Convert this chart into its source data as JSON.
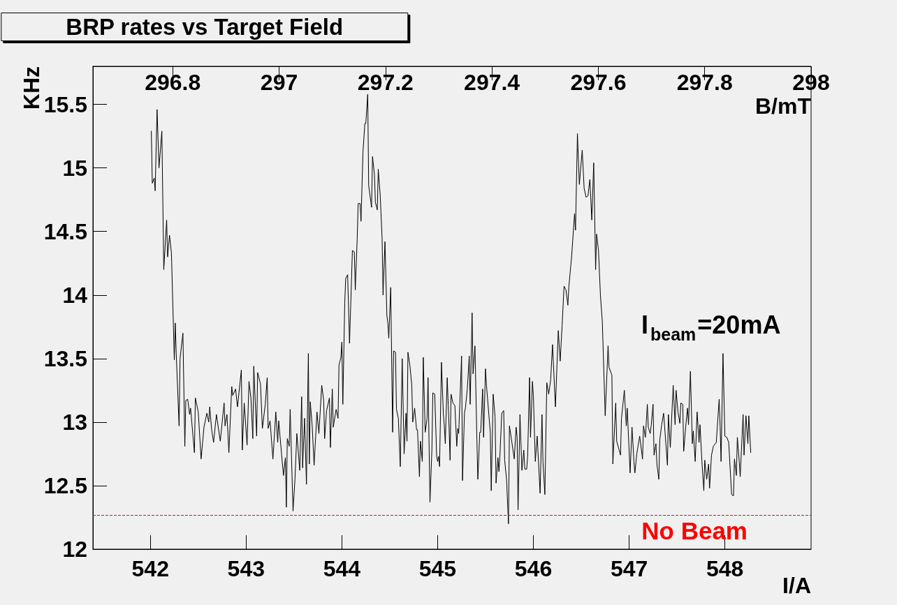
{
  "chart_data": {
    "type": "line",
    "title": "BRP rates vs Target Field",
    "xlabel": "I/A",
    "ylabel": "KHz",
    "x2label": "B/mT",
    "annotations": [
      "I$_{beam}$=20mA"
    ],
    "x": [
      542.01,
      542.02,
      542.04,
      542.05,
      542.07,
      542.09,
      542.12,
      542.14,
      542.17,
      542.18,
      542.2,
      542.22,
      542.25,
      542.26,
      542.27,
      542.3,
      542.31,
      542.34,
      542.36,
      542.37,
      542.39,
      542.41,
      542.42,
      542.46,
      542.47,
      542.5,
      542.53,
      542.56,
      542.59,
      542.61,
      542.62,
      542.64,
      542.66,
      542.69,
      542.73,
      542.77,
      542.78,
      542.8,
      542.82,
      542.85,
      542.86,
      542.89,
      542.91,
      542.95,
      542.96,
      542.98,
      543.01,
      543.03,
      543.05,
      543.07,
      543.08,
      543.11,
      543.12,
      543.15,
      543.17,
      543.2,
      543.22,
      543.23,
      543.25,
      543.28,
      543.31,
      543.33,
      543.34,
      543.37,
      543.39,
      543.41,
      543.42,
      543.43,
      543.45,
      543.46,
      543.49,
      543.51,
      543.53,
      543.56,
      543.58,
      543.59,
      543.61,
      543.63,
      543.65,
      543.66,
      543.67,
      543.69,
      543.71,
      543.74,
      543.76,
      543.79,
      543.81,
      543.82,
      543.84,
      543.87,
      543.88,
      543.9,
      543.91,
      543.94,
      543.96,
      543.97,
      543.99,
      544,
      544.01,
      544.03,
      544.04,
      544.06,
      544.08,
      544.11,
      544.13,
      544.14,
      544.16,
      544.17,
      544.19,
      544.2,
      544.22,
      544.24,
      544.25,
      544.27,
      544.28,
      544.31,
      544.32,
      544.34,
      544.35,
      544.37,
      544.38,
      544.4,
      544.42,
      544.43,
      544.45,
      544.47,
      544.48,
      544.49,
      544.51,
      544.53,
      544.54,
      544.56,
      544.57,
      544.59,
      544.61,
      544.63,
      544.65,
      544.67,
      544.68,
      544.69,
      544.71,
      544.73,
      544.74,
      544.76,
      544.78,
      544.79,
      544.81,
      544.82,
      544.84,
      544.85,
      544.87,
      544.89,
      544.9,
      544.92,
      544.94,
      544.95,
      544.97,
      544.99,
      545,
      545.01,
      545.02,
      545.04,
      545.06,
      545.07,
      545.08,
      545.1,
      545.12,
      545.13,
      545.14,
      545.16,
      545.18,
      545.2,
      545.21,
      545.22,
      545.25,
      545.26,
      545.28,
      545.29,
      545.31,
      545.33,
      545.34,
      545.36,
      545.37,
      545.39,
      545.41,
      545.42,
      545.44,
      545.45,
      545.47,
      545.48,
      545.5,
      545.51,
      545.55,
      545.56,
      545.58,
      545.6,
      545.61,
      545.63,
      545.64,
      545.65,
      545.67,
      545.69,
      545.7,
      545.72,
      545.74,
      545.75,
      545.77,
      545.8,
      545.82,
      545.83,
      545.84,
      545.86,
      545.88,
      545.9,
      545.91,
      545.93,
      545.94,
      545.96,
      545.97,
      545.99,
      546,
      546.02,
      546.04,
      546.07,
      546.09,
      546.1,
      546.12,
      546.14,
      546.16,
      546.18,
      546.2,
      546.23,
      546.26,
      546.28,
      546.3,
      546.32,
      546.34,
      546.36,
      546.37,
      546.4,
      546.43,
      546.44,
      546.46,
      546.48,
      546.51,
      546.53,
      546.55,
      546.57,
      546.59,
      546.61,
      546.63,
      546.65,
      546.66,
      546.68,
      546.7,
      546.72,
      546.73,
      546.75,
      546.78,
      546.79,
      546.82,
      546.83,
      546.86,
      546.87,
      546.91,
      546.92,
      546.95,
      546.97,
      546.98,
      547.01,
      547.03,
      547.05,
      547.06,
      547.08,
      547.11,
      547.14,
      547.15,
      547.17,
      547.19,
      547.2,
      547.22,
      547.23,
      547.25,
      547.26,
      547.28,
      547.29,
      547.31,
      547.32,
      547.34,
      547.36,
      547.37,
      547.4,
      547.41,
      547.43,
      547.46,
      547.48,
      547.49,
      547.51,
      547.53,
      547.54,
      547.56,
      547.57,
      547.59,
      547.61,
      547.62,
      547.64,
      547.66,
      547.67,
      547.69,
      547.71,
      547.73,
      547.74,
      547.76,
      547.78,
      547.79,
      547.81,
      547.83,
      547.84,
      547.86,
      547.88,
      547.91,
      547.94,
      547.95,
      547.96,
      547.98,
      548,
      548.02,
      548.04,
      548.07,
      548.09,
      548.1,
      548.12,
      548.13,
      548.15,
      548.16,
      548.19,
      548.2,
      548.22,
      548.24,
      548.25,
      548.27
    ],
    "series": [
      {
        "color": "#000000",
        "values": [
          15.29,
          14.88,
          14.92,
          14.82,
          15.46,
          15.0,
          15.29,
          14.2,
          14.59,
          14.3,
          14.47,
          14.33,
          13.49,
          13.78,
          13.54,
          12.97,
          13.5,
          13.7,
          12.81,
          13.17,
          13.18,
          13.06,
          13.11,
          12.76,
          13.19,
          13.08,
          12.71,
          12.96,
          13.07,
          13.0,
          13.12,
          12.94,
          12.84,
          13.06,
          12.85,
          13.15,
          12.97,
          13.06,
          12.76,
          13.28,
          13.21,
          13.26,
          13.12,
          13.41,
          12.78,
          13.15,
          12.82,
          13.32,
          13.19,
          12.87,
          13.44,
          12.89,
          13.39,
          13.3,
          12.95,
          13.14,
          13.35,
          12.95,
          13.01,
          12.71,
          13.08,
          12.84,
          13.01,
          12.75,
          12.58,
          12.72,
          12.33,
          12.87,
          12.81,
          13.1,
          12.3,
          12.55,
          12.91,
          12.62,
          13.2,
          12.64,
          13.03,
          12.51,
          13.54,
          12.67,
          13.16,
          12.97,
          12.66,
          13.08,
          12.91,
          13.29,
          13.17,
          12.87,
          13.09,
          13.19,
          12.8,
          13.26,
          12.96,
          13.1,
          13.03,
          13.45,
          13.51,
          13.63,
          13.14,
          13.94,
          14.13,
          14.16,
          13.62,
          14.35,
          14.34,
          14.04,
          14.44,
          14.72,
          14.72,
          14.58,
          15.12,
          15.35,
          15.35,
          15.58,
          14.86,
          14.69,
          15.09,
          14.95,
          14.73,
          14.67,
          14.99,
          14.79,
          14.45,
          14.0,
          14.42,
          13.84,
          13.78,
          13.66,
          14.06,
          12.92,
          13.56,
          13.55,
          13.1,
          13.03,
          12.65,
          13.5,
          12.75,
          13.07,
          12.85,
          13.55,
          13.45,
          13.29,
          13.0,
          13.11,
          12.94,
          12.94,
          12.57,
          12.85,
          12.69,
          13.51,
          12.92,
          13.03,
          13.35,
          12.37,
          12.78,
          13.23,
          13.22,
          12.73,
          12.69,
          12.73,
          12.65,
          13.47,
          13.06,
          12.97,
          12.83,
          13.35,
          12.95,
          12.7,
          13.22,
          13.15,
          13.13,
          12.81,
          12.95,
          12.91,
          13.52,
          12.54,
          13.07,
          13.11,
          13.26,
          13.52,
          13.14,
          13.86,
          13.38,
          13.6,
          12.86,
          12.55,
          12.92,
          12.92,
          13.26,
          12.88,
          13.42,
          13.29,
          12.92,
          12.46,
          13.22,
          13.04,
          12.52,
          12.72,
          12.61,
          12.73,
          13.07,
          13.09,
          12.7,
          12.55,
          12.2,
          12.97,
          12.87,
          12.71,
          12.96,
          12.88,
          12.31,
          13.06,
          12.62,
          12.78,
          12.63,
          12.63,
          12.73,
          13.35,
          12.88,
          13.32,
          13.21,
          12.69,
          12.89,
          12.44,
          13.06,
          12.69,
          12.43,
          13.31,
          13.22,
          13.33,
          13.61,
          13.12,
          13.72,
          13.48,
          13.76,
          14.07,
          14.04,
          13.92,
          14.06,
          14.31,
          14.64,
          14.51,
          15.27,
          14.87,
          15.14,
          14.84,
          14.77,
          14.78,
          14.91,
          14.59,
          15.04,
          14.2,
          14.48,
          14.35,
          14.0,
          13.79,
          13.54,
          13.05,
          13.6,
          13.43,
          13.37,
          12.67,
          13.15,
          12.85,
          12.74,
          13.03,
          13.25,
          12.97,
          13.11,
          12.6,
          12.96,
          12.69,
          12.6,
          12.75,
          12.89,
          12.71,
          12.97,
          12.88,
          13.14,
          12.96,
          12.91,
          12.97,
          13.14,
          12.74,
          12.83,
          12.67,
          12.55,
          12.86,
          12.98,
          13.07,
          12.97,
          12.66,
          13.06,
          12.8,
          13.29,
          12.98,
          13.25,
          13.08,
          12.99,
          13.15,
          13.14,
          12.77,
          12.96,
          13.11,
          12.98,
          13.4,
          12.83,
          12.93,
          12.69,
          13.08,
          12.84,
          12.98,
          12.69,
          12.46,
          12.7,
          12.55,
          12.67,
          12.48,
          12.74,
          12.81,
          12.84,
          13.18,
          12.97,
          12.69,
          13.54,
          12.89,
          12.88,
          12.84,
          12.43,
          12.42,
          12.71,
          12.58,
          12.88,
          12.69,
          12.57,
          13.06,
          12.74,
          13.05,
          12.83,
          13.05,
          12.76
        ]
      }
    ],
    "xlim": [
      541.4,
      548.9
    ],
    "xticks": [
      542,
      543,
      544,
      545,
      546,
      547,
      548
    ],
    "ylim": [
      12,
      15.8
    ],
    "yticks": [
      12,
      12.5,
      13,
      13.5,
      14,
      14.5,
      15,
      15.5
    ],
    "x2lim": [
      296.65,
      298.0
    ],
    "x2ticks": [
      296.8,
      297,
      297.2,
      297.4,
      297.6,
      297.8,
      298
    ],
    "ref_lines": [
      {
        "axis": "y",
        "value": 12.27,
        "label": "No Beam",
        "color": "#ff0000",
        "line_style": "dashed"
      }
    ],
    "grid": false,
    "marker": "none",
    "line_style": "solid"
  }
}
